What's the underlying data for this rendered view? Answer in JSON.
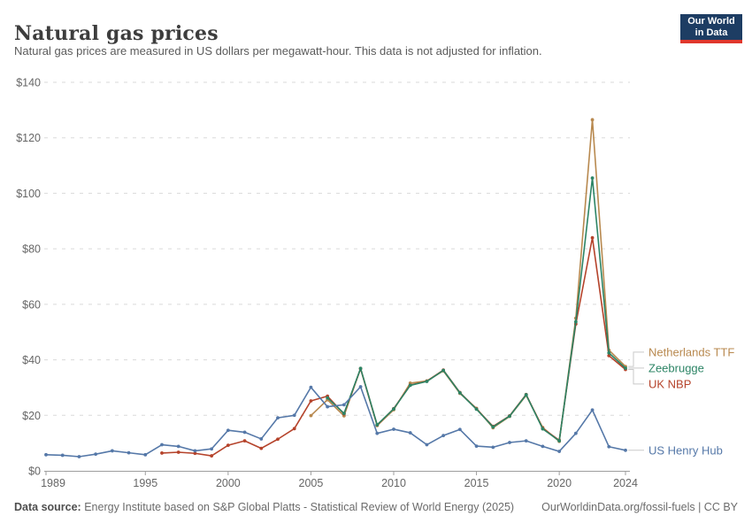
{
  "header": {
    "title": "Natural gas prices",
    "subtitle": "Natural gas prices are measured in US dollars per megawatt-hour. This data is not adjusted for inflation.",
    "logo": {
      "line1": "Our World",
      "line2": "in Data",
      "bg_color": "#1d3d63",
      "accent_color": "#e0372c"
    }
  },
  "footer": {
    "source_label": "Data source:",
    "source_text": " Energy Institute based on S&P Global Platts - Statistical Review of World Energy (2025)",
    "right_text": "OurWorldinData.org/fossil-fuels | CC BY"
  },
  "chart_data": {
    "type": "line",
    "title": "Natural gas prices",
    "ylabel": "US dollars per megawatt-hour",
    "x_axis": {
      "min": 1989,
      "max": 2024,
      "ticks": [
        1989,
        1995,
        2000,
        2005,
        2010,
        2015,
        2020,
        2024
      ]
    },
    "y_axis": {
      "min": 0,
      "max": 140,
      "ticks": [
        0,
        20,
        40,
        60,
        80,
        100,
        120,
        140
      ],
      "prefix": "$",
      "grid": "dashed"
    },
    "legend_position": "right-end-labels",
    "marker_radius": 1.9,
    "colors": {
      "grid": "#dadada",
      "axis": "#9e9e9e",
      "tick_text": "#666666",
      "leader": "#c9c9c9"
    },
    "series": [
      {
        "name": "Netherlands TTF",
        "color": "#b8894f",
        "start_year": 2005,
        "values": [
          19.9,
          25.6,
          19.8,
          36.9,
          16.3,
          22.0,
          31.6,
          32.4,
          36.0,
          27.9,
          22.5,
          15.5,
          19.6,
          27.2,
          15.6,
          10.6,
          55.0,
          126.5,
          43.5,
          37.6
        ]
      },
      {
        "name": "UK NBP",
        "color": "#b5432b",
        "start_year": 1996,
        "values": [
          6.4,
          6.7,
          6.3,
          5.4,
          9.2,
          10.8,
          8.1,
          11.4,
          15.2,
          25.2,
          26.9,
          20.5,
          36.8,
          16.5,
          22.4,
          30.9,
          32.3,
          36.3,
          28.2,
          22.3,
          16.0,
          19.8,
          27.5,
          15.3,
          11.0,
          52.9,
          84.0,
          41.5,
          36.5
        ]
      },
      {
        "name": "Zeebrugge",
        "color": "#2c8465",
        "start_year": 2006,
        "values": [
          26.3,
          20.7,
          36.9,
          16.6,
          22.3,
          30.8,
          32.2,
          36.2,
          28.1,
          22.2,
          15.8,
          19.7,
          27.4,
          15.1,
          10.8,
          53.7,
          105.5,
          42.5,
          37.0
        ]
      },
      {
        "name": "US Henry Hub",
        "color": "#5578a8",
        "start_year": 1989,
        "values": [
          5.8,
          5.6,
          5.1,
          6.0,
          7.2,
          6.5,
          5.8,
          9.4,
          8.8,
          7.2,
          7.9,
          14.6,
          13.9,
          11.5,
          19.1,
          20.0,
          30.1,
          23.1,
          23.8,
          30.3,
          13.5,
          15.0,
          13.7,
          9.4,
          12.7,
          14.9,
          8.9,
          8.5,
          10.2,
          10.8,
          8.8,
          7.0,
          13.5,
          21.9,
          8.7,
          7.4
        ]
      }
    ]
  }
}
